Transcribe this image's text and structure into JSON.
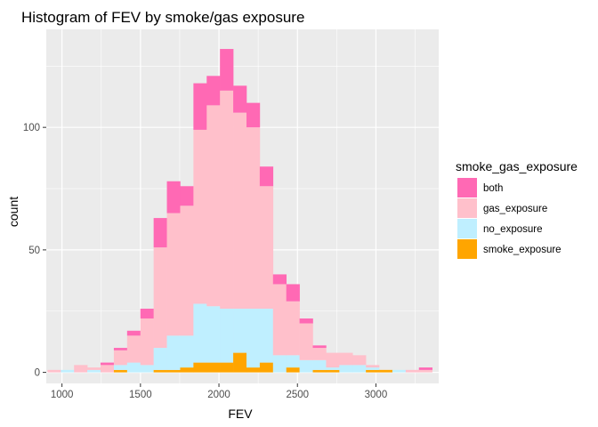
{
  "chart_data": {
    "type": "bar",
    "subtype": "stacked-histogram",
    "title": "Histogram of FEV by smoke/gas exposure",
    "xlabel": "FEV",
    "ylabel": "count",
    "xlim": [
      900,
      3400
    ],
    "ylim": [
      -4.5,
      140
    ],
    "xticks": [
      1000,
      1500,
      2000,
      2500,
      3000
    ],
    "yticks": [
      0,
      50,
      100
    ],
    "grid": true,
    "legend_position": "right",
    "legend_title": "smoke_gas_exposure",
    "bin_width": 84.5,
    "bin_centers": [
      950.2,
      1034.7,
      1119.2,
      1203.7,
      1288.2,
      1372.7,
      1457.2,
      1541.7,
      1626.2,
      1710.7,
      1795.2,
      1879.7,
      1964.2,
      2048.7,
      2133.2,
      2217.7,
      2302.2,
      2386.7,
      2471.2,
      2555.7,
      2640.2,
      2724.7,
      2809.2,
      2893.7,
      2978.2,
      3062.7,
      3147.2,
      3231.7,
      3316.2
    ],
    "series": [
      {
        "name": "smoke_exposure",
        "color": "#FFA500",
        "values": [
          0,
          0,
          0,
          0,
          0,
          1,
          0,
          0,
          1,
          1,
          2,
          4,
          4,
          4,
          8,
          2,
          4,
          0,
          2,
          0,
          1,
          1,
          0,
          0,
          1,
          1,
          0,
          0,
          0
        ]
      },
      {
        "name": "no_exposure",
        "color": "#BFEFFF",
        "values": [
          0,
          1,
          0,
          1,
          0,
          2,
          4,
          3,
          9,
          14,
          13,
          24,
          23,
          22,
          18,
          24,
          22,
          7,
          5,
          5,
          4,
          1,
          3,
          3,
          1,
          0,
          1,
          0,
          0
        ]
      },
      {
        "name": "gas_exposure",
        "color": "#FFC0CB",
        "values": [
          1,
          0,
          3,
          1,
          3,
          6,
          11,
          19,
          41,
          50,
          53,
          71,
          82,
          89,
          80,
          74,
          50,
          29,
          22,
          15,
          5,
          6,
          5,
          4,
          1,
          0,
          0,
          1,
          1
        ]
      },
      {
        "name": "both",
        "color": "#FF69B4",
        "values": [
          0,
          0,
          0,
          0,
          1,
          1,
          2,
          4,
          12,
          13,
          8,
          19,
          12,
          17,
          11,
          10,
          8,
          4,
          7,
          2,
          1,
          0,
          0,
          0,
          0,
          0,
          0,
          0,
          1
        ]
      }
    ],
    "legend_order": [
      "both",
      "gas_exposure",
      "no_exposure",
      "smoke_exposure"
    ],
    "panel_background": "#EBEBEB",
    "grid_color": "#FFFFFF"
  }
}
